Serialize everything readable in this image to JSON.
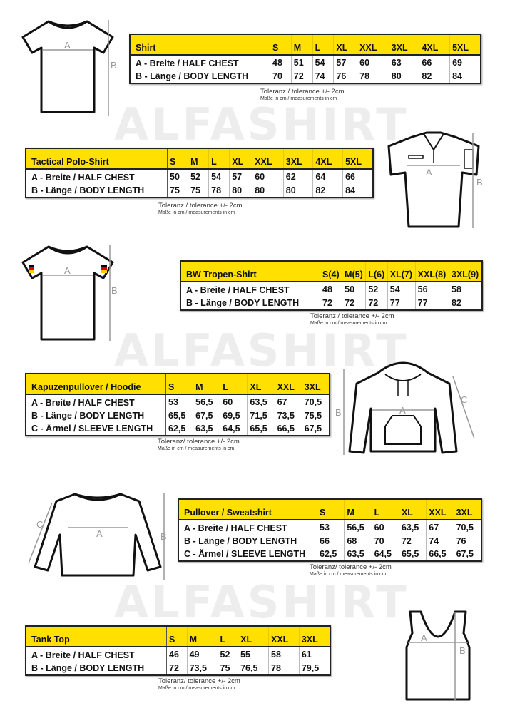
{
  "watermark": "ALFASHIRT",
  "accent_color": "#ffe000",
  "tables": [
    {
      "title": "Shirt",
      "sizes": [
        "S",
        "M",
        "L",
        "XL",
        "XXL",
        "3XL",
        "4XL",
        "5XL"
      ],
      "rows": [
        {
          "label": "A -  Breite / HALF CHEST",
          "values": [
            "48",
            "51",
            "54",
            "57",
            "60",
            "63",
            "66",
            "69"
          ]
        },
        {
          "label": "B -  Länge / BODY LENGTH",
          "values": [
            "70",
            "72",
            "74",
            "76",
            "78",
            "80",
            "82",
            "84"
          ]
        }
      ],
      "tolerance": "Toleranz / tolerance +/- 2cm",
      "units": "Maße in cm / measurements in cm"
    },
    {
      "title": "Tactical Polo-Shirt",
      "sizes": [
        "S",
        "M",
        "L",
        "XL",
        "XXL",
        "3XL",
        "4XL",
        "5XL"
      ],
      "rows": [
        {
          "label": "A -  Breite / HALF CHEST",
          "values": [
            "50",
            "52",
            "54",
            "57",
            "60",
            "62",
            "64",
            "66"
          ]
        },
        {
          "label": "B -  Länge / BODY LENGTH",
          "values": [
            "75",
            "75",
            "78",
            "80",
            "80",
            "80",
            "82",
            "84"
          ]
        }
      ],
      "tolerance": "Toleranz / tolerance +/- 2cm",
      "units": "Maße in cm / measurements in cm"
    },
    {
      "title": "BW Tropen-Shirt",
      "sizes": [
        "S(4)",
        "M(5)",
        "L(6)",
        "XL(7)",
        "XXL(8)",
        "3XL(9)"
      ],
      "rows": [
        {
          "label": "A -  Breite / HALF CHEST",
          "values": [
            "48",
            "50",
            "52",
            "54",
            "56",
            "58"
          ]
        },
        {
          "label": "B -  Länge / BODY LENGTH",
          "values": [
            "72",
            "72",
            "72",
            "77",
            "77",
            "82"
          ]
        }
      ],
      "tolerance": "Toleranz / tolerance +/- 2cm",
      "units": "Maße in cm / measurements in cm"
    },
    {
      "title": "Kapuzenpullover / Hoodie",
      "sizes": [
        "S",
        "M",
        "L",
        "XL",
        "XXL",
        "3XL"
      ],
      "rows": [
        {
          "label": "A -  Breite / HALF CHEST",
          "values": [
            "53",
            "56,5",
            "60",
            "63,5",
            "67",
            "70,5"
          ]
        },
        {
          "label": "B -  Länge / BODY LENGTH",
          "values": [
            "65,5",
            "67,5",
            "69,5",
            "71,5",
            "73,5",
            "75,5"
          ]
        },
        {
          "label": "C -  Ärmel / SLEEVE LENGTH",
          "values": [
            "62,5",
            "63,5",
            "64,5",
            "65,5",
            "66,5",
            "67,5"
          ]
        }
      ],
      "tolerance": "Toleranz/ tolerance +/- 2cm",
      "units": "Maße in cm / measurements in cm"
    },
    {
      "title": "Pullover / Sweatshirt",
      "sizes": [
        "S",
        "M",
        "L",
        "XL",
        "XXL",
        "3XL"
      ],
      "rows": [
        {
          "label": "A -  Breite / HALF CHEST",
          "values": [
            "53",
            "56,5",
            "60",
            "63,5",
            "67",
            "70,5"
          ]
        },
        {
          "label": "B -  Länge / BODY LENGTH",
          "values": [
            "66",
            "68",
            "70",
            "72",
            "74",
            "76"
          ]
        },
        {
          "label": "C -  Ärmel / SLEEVE LENGTH",
          "values": [
            "62,5",
            "63,5",
            "64,5",
            "65,5",
            "66,5",
            "67,5"
          ]
        }
      ],
      "tolerance": "Toleranz/ tolerance +/- 2cm",
      "units": "Maße in cm / measurements in cm"
    },
    {
      "title": "Tank Top",
      "sizes": [
        "S",
        "M",
        "L",
        "XL",
        "XXL",
        "3XL"
      ],
      "rows": [
        {
          "label": "A -  Breite / HALF CHEST",
          "values": [
            "46",
            "49",
            "52",
            "55",
            "58",
            "61"
          ]
        },
        {
          "label": "B -  Länge / BODY LENGTH",
          "values": [
            "72",
            "73,5",
            "75",
            "76,5",
            "78",
            "79,5"
          ]
        }
      ],
      "tolerance": "Toleranz/ tolerance +/- 2cm",
      "units": "Maße in cm / measurements in cm"
    }
  ],
  "measure_labels": {
    "a": "A",
    "b": "B",
    "c": "C"
  }
}
